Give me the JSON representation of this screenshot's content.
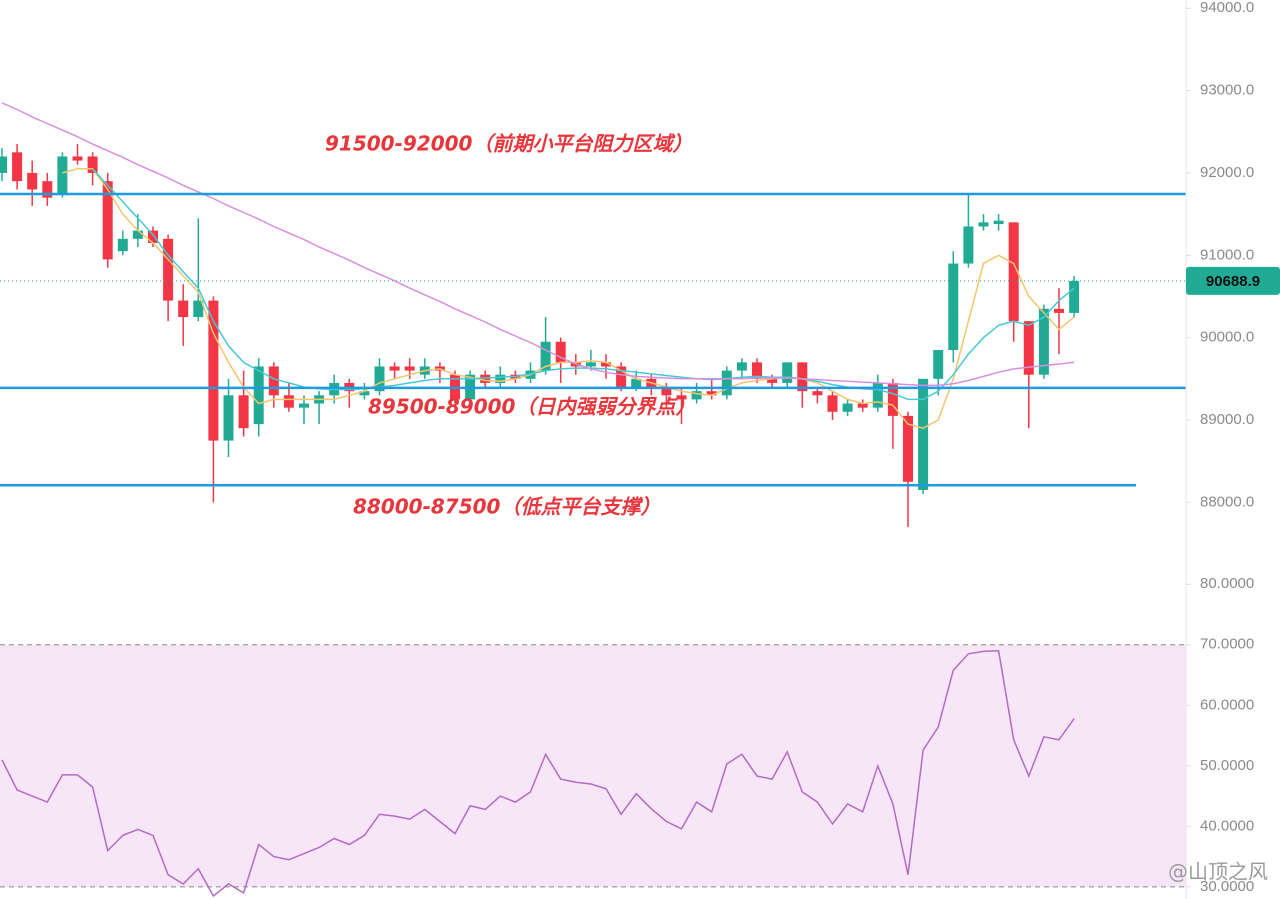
{
  "chart_data": [
    {
      "type": "candlestick",
      "open": [
        92000,
        92250,
        92000,
        91900,
        91750,
        92200,
        92200,
        91900,
        91050,
        91200,
        91300,
        91200,
        90450,
        90250,
        90450,
        88750,
        89300,
        88950,
        89650,
        89300,
        89150,
        89200,
        89300,
        89450,
        89300,
        89350,
        89650,
        89650,
        89550,
        89650,
        89550,
        89250,
        89550,
        89450,
        89550,
        89500,
        89600,
        89950,
        89700,
        89650,
        89700,
        89650,
        89400,
        89500,
        89400,
        89300,
        89250,
        89350,
        89300,
        89600,
        89700,
        89500,
        89450,
        89700,
        89350,
        89300,
        89100,
        89200,
        89150,
        89450,
        89050,
        88150,
        89500,
        89850,
        90900,
        91350,
        91380,
        91400,
        90200,
        89550,
        90350,
        90300
      ],
      "close": [
        92200,
        91900,
        91800,
        91700,
        92200,
        92150,
        92000,
        90950,
        91200,
        91300,
        91150,
        90450,
        90250,
        90450,
        88750,
        89300,
        88900,
        89650,
        89300,
        89150,
        89200,
        89300,
        89450,
        89350,
        89350,
        89650,
        89600,
        89600,
        89650,
        89600,
        89250,
        89550,
        89450,
        89550,
        89500,
        89600,
        89950,
        89700,
        89650,
        89700,
        89650,
        89400,
        89500,
        89400,
        89300,
        89250,
        89350,
        89300,
        89600,
        89700,
        89500,
        89450,
        89700,
        89350,
        89300,
        89100,
        89200,
        89150,
        89450,
        89050,
        88250,
        89500,
        89850,
        90900,
        91350,
        91400,
        91420,
        90200,
        89550,
        90350,
        90300,
        90688.9
      ],
      "high": [
        92300,
        92350,
        92150,
        92000,
        92250,
        92350,
        92250,
        92000,
        91300,
        91500,
        91350,
        91250,
        90650,
        91450,
        90500,
        89500,
        89600,
        89750,
        89700,
        89450,
        89300,
        89350,
        89550,
        89500,
        89450,
        89750,
        89700,
        89750,
        89750,
        89700,
        89600,
        89600,
        89600,
        89650,
        89600,
        89700,
        90250,
        90000,
        89800,
        89850,
        89800,
        89700,
        89600,
        89550,
        89450,
        89400,
        89450,
        89500,
        89650,
        89750,
        89750,
        89550,
        89700,
        89700,
        89400,
        89350,
        89250,
        89250,
        89550,
        89500,
        89100,
        89500,
        89850,
        91050,
        91750,
        91500,
        91500,
        91400,
        90200,
        90400,
        90600,
        90750
      ],
      "low": [
        91900,
        91800,
        91600,
        91600,
        91700,
        92100,
        91850,
        90850,
        91000,
        91100,
        91100,
        90200,
        89900,
        90200,
        88000,
        88550,
        88800,
        88800,
        89150,
        89100,
        88950,
        88950,
        89200,
        89150,
        89250,
        89300,
        89500,
        89500,
        89500,
        89450,
        89200,
        89200,
        89400,
        89400,
        89450,
        89450,
        89550,
        89450,
        89550,
        89600,
        89500,
        89350,
        89350,
        89300,
        89150,
        88950,
        89200,
        89250,
        89250,
        89500,
        89450,
        89400,
        89400,
        89150,
        89200,
        89000,
        89050,
        89100,
        89100,
        88650,
        87700,
        88100,
        89300,
        89700,
        90850,
        91300,
        91300,
        89950,
        88900,
        89500,
        89800,
        90250
      ],
      "up_color": "#22ab94",
      "down_color": "#f23645",
      "series": [
        {
          "color": "#f2c46d",
          "values": [
            null,
            null,
            null,
            null,
            92000,
            92050,
            92050,
            91800,
            91500,
            91300,
            91150,
            90950,
            90750,
            90550,
            90050,
            89700,
            89400,
            89200,
            89250,
            89250,
            89250,
            89250,
            89250,
            89300,
            89350,
            89450,
            89500,
            89550,
            89600,
            89620,
            89550,
            89520,
            89480,
            89470,
            89500,
            89550,
            89650,
            89700,
            89700,
            89720,
            89700,
            89600,
            89500,
            89450,
            89400,
            89350,
            89320,
            89300,
            89380,
            89450,
            89480,
            89500,
            89520,
            89500,
            89450,
            89350,
            89250,
            89200,
            89220,
            89180,
            88950,
            88900,
            89000,
            89500,
            90200,
            90900,
            91000,
            90900,
            90500,
            90300,
            90100,
            90250
          ]
        },
        {
          "color": "#45c9d3",
          "values": [
            null,
            null,
            null,
            null,
            null,
            null,
            92050,
            91850,
            91650,
            91450,
            91250,
            91000,
            90800,
            90600,
            90200,
            89900,
            89700,
            89600,
            89500,
            89450,
            89400,
            89380,
            89370,
            89370,
            89380,
            89400,
            89420,
            89450,
            89480,
            89500,
            89500,
            89500,
            89510,
            89520,
            89530,
            89560,
            89600,
            89620,
            89630,
            89630,
            89620,
            89600,
            89580,
            89560,
            89540,
            89520,
            89500,
            89490,
            89500,
            89520,
            89530,
            89520,
            89520,
            89500,
            89470,
            89430,
            89400,
            89380,
            89370,
            89320,
            89250,
            89250,
            89350,
            89550,
            89800,
            90000,
            90150,
            90200,
            90150,
            90250,
            90450,
            90600
          ]
        },
        {
          "color": "#d88ee0",
          "values": [
            92850,
            92770,
            92680,
            92600,
            92520,
            92440,
            92350,
            92270,
            92190,
            92100,
            92020,
            91940,
            91850,
            91770,
            91690,
            91600,
            91520,
            91440,
            91350,
            91270,
            91190,
            91100,
            91020,
            90940,
            90850,
            90770,
            90690,
            90600,
            90520,
            90440,
            90350,
            90270,
            90190,
            90100,
            90020,
            89940,
            89850,
            89760,
            89680,
            89620,
            89580,
            89550,
            89530,
            89520,
            89510,
            89500,
            89500,
            89500,
            89500,
            89500,
            89510,
            89510,
            89510,
            89500,
            89490,
            89480,
            89470,
            89460,
            89450,
            89440,
            89430,
            89420,
            89420,
            89440,
            89480,
            89530,
            89580,
            89620,
            89640,
            89660,
            89680,
            89700
          ]
        }
      ],
      "levels": [
        91744,
        89390,
        88207
      ],
      "level_color": "#1e9be0",
      "annotations": [
        "91500-92000（前期小平台阻力区域）",
        "89500-89000（日内强弱分界点）",
        "88000-87500（低点平台支撑）"
      ],
      "last_price": 90688.9,
      "ylim": [
        87300,
        94100
      ],
      "yticks": [
        {
          "value": 88000,
          "label": "88000.0"
        },
        {
          "value": 89000,
          "label": "89000.0"
        },
        {
          "value": 90000,
          "label": "90000.0"
        },
        {
          "value": 91000,
          "label": "91000.0"
        },
        {
          "value": 92000,
          "label": "92000.0"
        },
        {
          "value": 93000,
          "label": "93000.0"
        },
        {
          "value": 94000,
          "label": "94000.0"
        }
      ]
    },
    {
      "type": "line",
      "color": "#b36bc4",
      "band": [
        30,
        70
      ],
      "band_color": "#f7e6f7",
      "values": [
        51,
        46,
        45,
        44,
        48.5,
        48.5,
        46.5,
        36,
        38.5,
        39.5,
        38.5,
        32,
        30.5,
        33,
        28.5,
        30.5,
        29,
        37,
        35,
        34.5,
        35.5,
        36.5,
        38,
        37,
        38.5,
        42,
        41.7,
        41.2,
        42.8,
        40.8,
        38.8,
        43.4,
        42.8,
        45,
        44,
        45.7,
        51.9,
        47.8,
        47.3,
        47,
        46.2,
        42,
        45.4,
        42.9,
        40.8,
        39.6,
        44,
        42.4,
        50.3,
        51.9,
        48.3,
        47.8,
        52.3,
        45.7,
        44,
        40.4,
        43.7,
        42.4,
        50,
        43.7,
        32,
        52.6,
        56.4,
        65.8,
        68.5,
        68.9,
        69,
        54.3,
        48.3,
        54.8,
        54.3,
        57.8
      ],
      "ylim": [
        28,
        84
      ],
      "yticks": [
        {
          "value": 30,
          "label": "30.0000"
        },
        {
          "value": 40,
          "label": "40.0000"
        },
        {
          "value": 50,
          "label": "50.0000"
        },
        {
          "value": 60,
          "label": "60.0000"
        },
        {
          "value": 70,
          "label": "70.0000"
        },
        {
          "value": 80,
          "label": "80.0000"
        }
      ]
    }
  ],
  "watermark": "@山顶之风"
}
